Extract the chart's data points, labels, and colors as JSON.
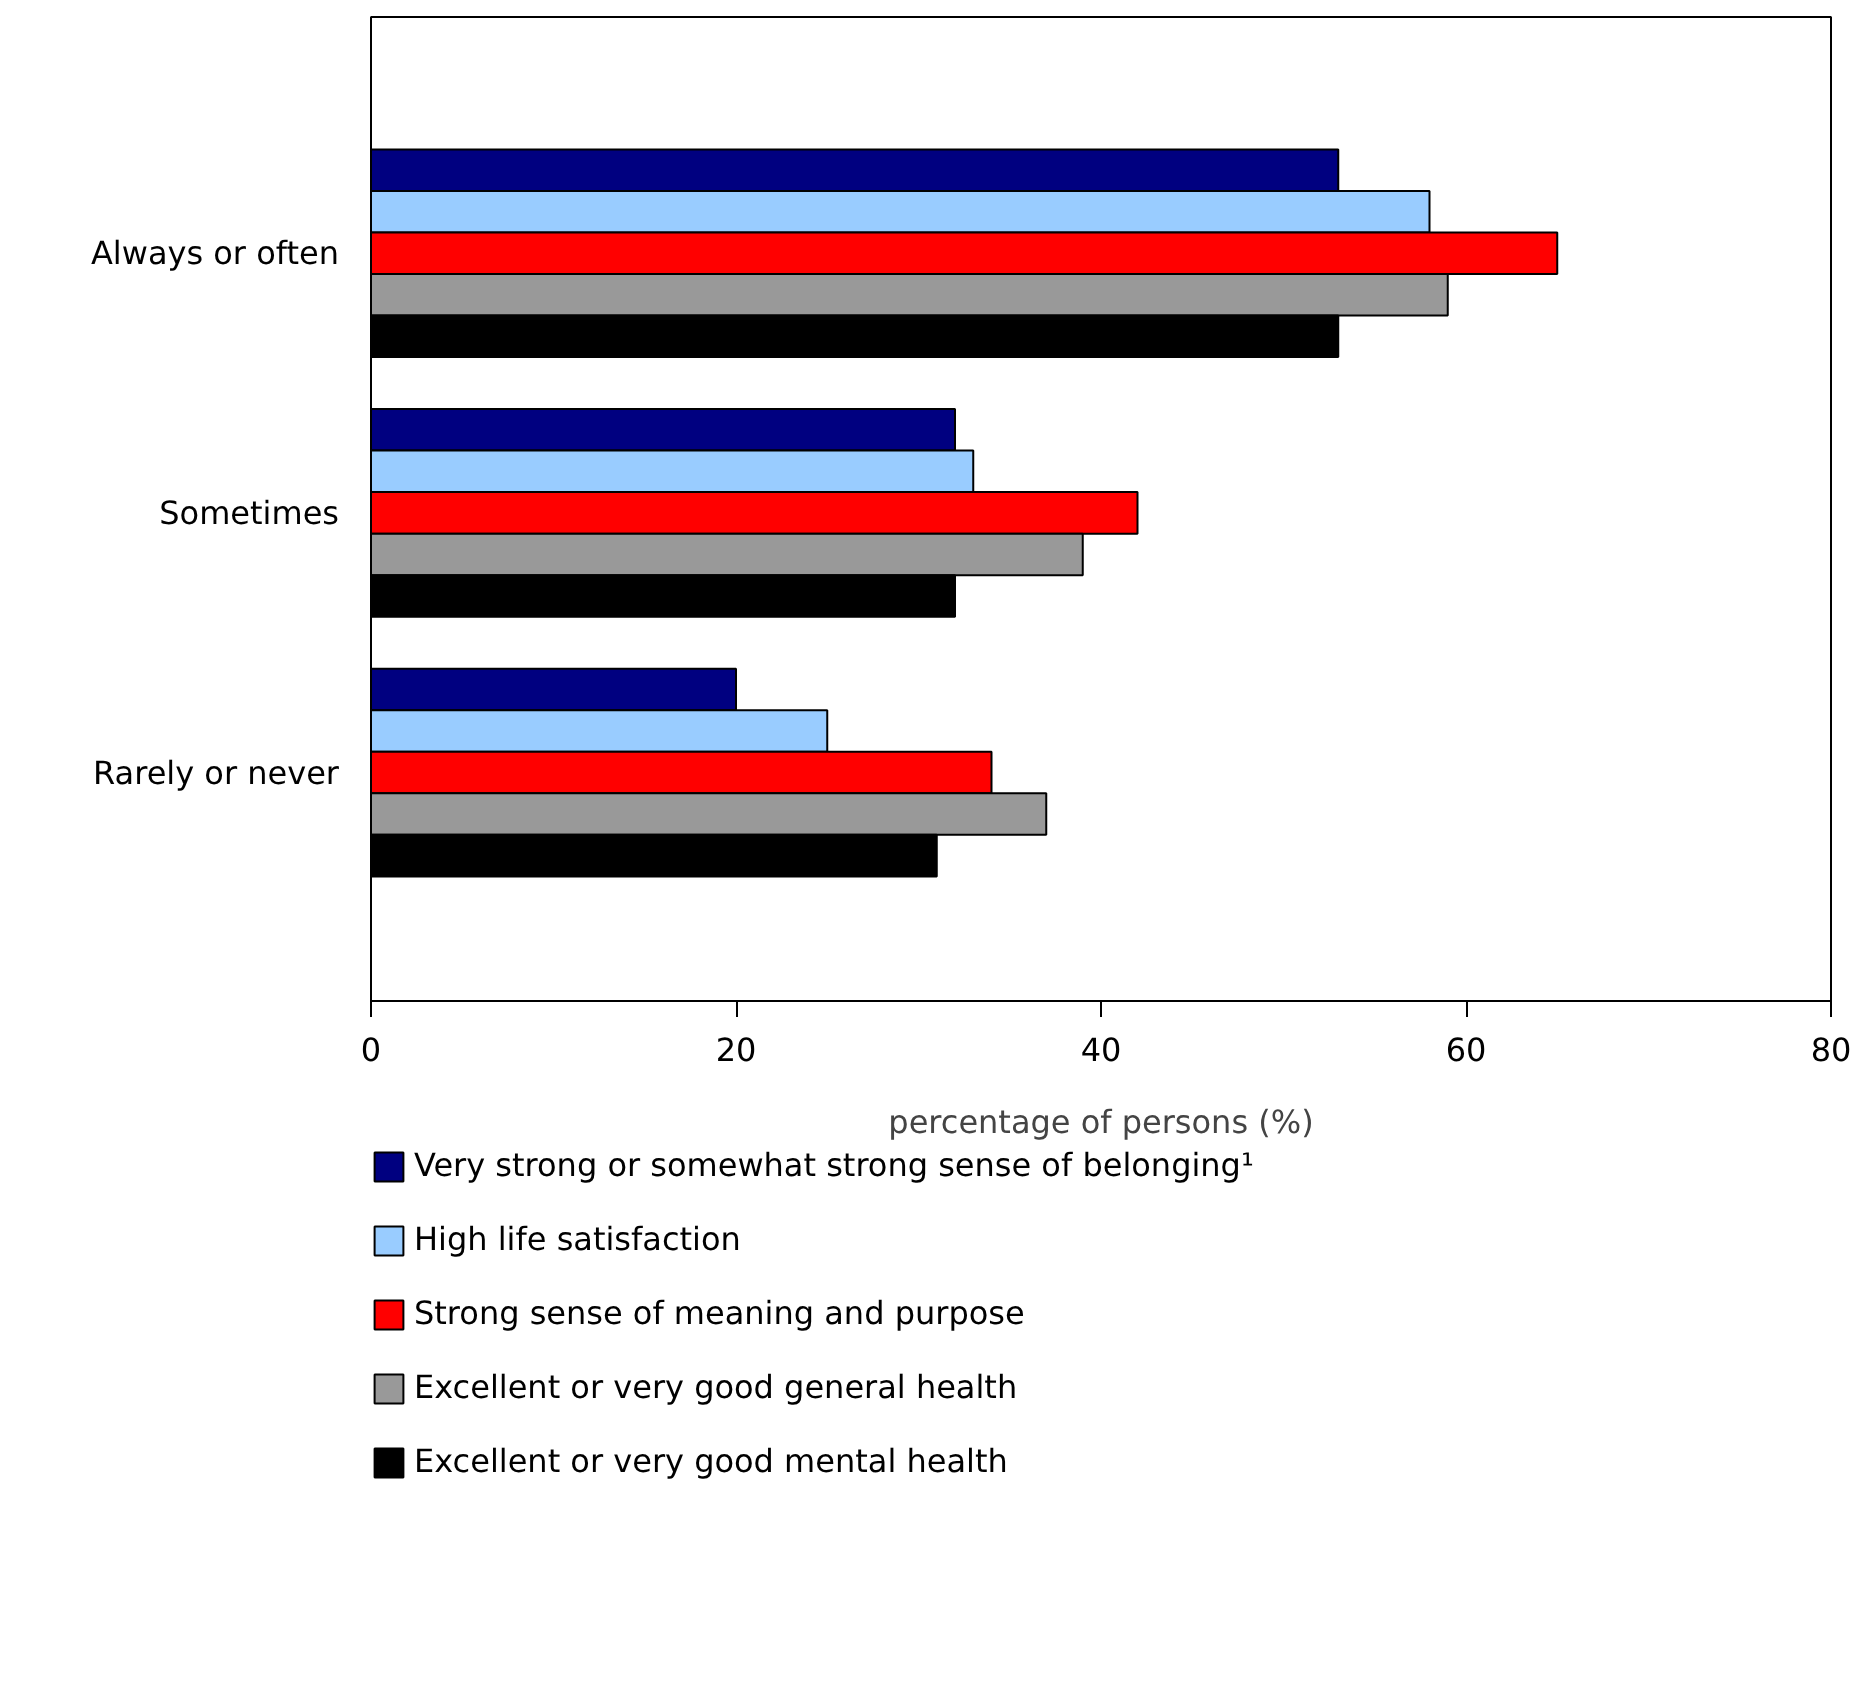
{
  "chart_data": {
    "type": "bar",
    "orientation": "horizontal",
    "categories": [
      "Always or often",
      "Sometimes",
      "Rarely or never"
    ],
    "xlabel": "percentage of persons (%)",
    "xlim": [
      0,
      80
    ],
    "xticks": [
      0,
      20,
      40,
      60,
      80
    ],
    "grid": false,
    "legend": "bottom",
    "series": [
      {
        "name": "Very strong or somewhat strong sense of belonging¹",
        "color": "#000080",
        "values": [
          53,
          32,
          20
        ]
      },
      {
        "name": "High life satisfaction",
        "color": "#99ccff",
        "values": [
          58,
          33,
          25
        ]
      },
      {
        "name": "Strong sense of meaning and purpose",
        "color": "#ff0000",
        "values": [
          65,
          42,
          34
        ]
      },
      {
        "name": "Excellent or very good general health",
        "color": "#999999",
        "values": [
          59,
          39,
          37
        ]
      },
      {
        "name": "Excellent or very good mental health",
        "color": "#000000",
        "values": [
          53,
          32,
          31
        ]
      }
    ]
  }
}
